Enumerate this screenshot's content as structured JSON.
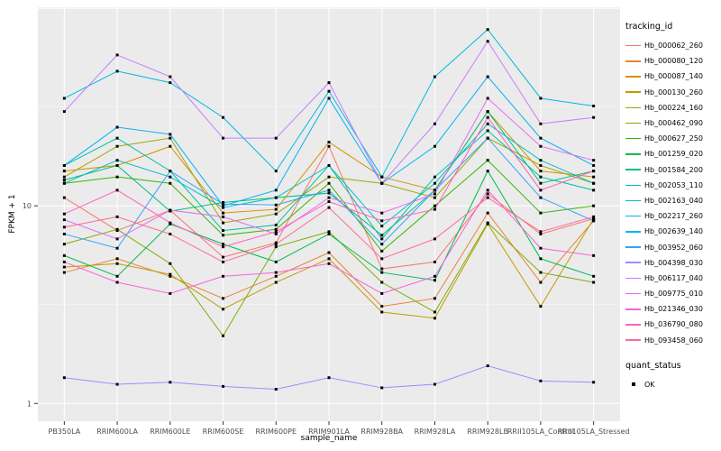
{
  "chart_data": {
    "type": "line",
    "title": "",
    "xlabel": "sample_name",
    "ylabel": "FPKM + 1",
    "y_scale": "log10",
    "ylim": [
      1,
      100
    ],
    "grid": true,
    "legend_position": "right",
    "point_color": "#000000",
    "yticks": [
      {
        "label": "1",
        "value": 1
      },
      {
        "label": "10",
        "value": 10
      }
    ],
    "categories": [
      "PB350LA",
      "RRIM600LA",
      "RRIM600LE",
      "RRIM600SE",
      "RRIM600PE",
      "RRIM901LA",
      "RRIM928BA",
      "RRIM928LA",
      "RRIM928LB",
      "RRII105LA_Control",
      "RRII105LA_Stressed"
    ],
    "series": [
      {
        "name": "Hb_000062_260",
        "color": "#F8766D",
        "values": [
          11,
          7.5,
          9.5,
          5.5,
          6.5,
          20,
          4.8,
          5.2,
          11.5,
          7.2,
          8.6
        ]
      },
      {
        "name": "Hb_000080_120",
        "color": "#EA8331",
        "values": [
          4.6,
          5.4,
          4.4,
          3.4,
          4.4,
          5.8,
          3.1,
          3.4,
          9.2,
          4.1,
          8.4
        ]
      },
      {
        "name": "Hb_000087_140",
        "color": "#D89000",
        "values": [
          15,
          16,
          20,
          9.2,
          9.6,
          21,
          14,
          12,
          30,
          15,
          14
        ]
      },
      {
        "name": "Hb_000130_260",
        "color": "#C09B00",
        "values": [
          4.9,
          5.1,
          4.5,
          3.0,
          4.1,
          5.4,
          2.9,
          2.7,
          8.1,
          3.1,
          8.6
        ]
      },
      {
        "name": "Hb_000224_160",
        "color": "#A3A500",
        "values": [
          14,
          20,
          22,
          8.2,
          9.1,
          14,
          13,
          11,
          22,
          16,
          13
        ]
      },
      {
        "name": "Hb_000462_090",
        "color": "#7CAE00",
        "values": [
          6.4,
          7.6,
          5.1,
          2.2,
          6.2,
          7.4,
          4.1,
          2.9,
          8.2,
          4.6,
          4.1
        ]
      },
      {
        "name": "Hb_000627_250",
        "color": "#39B600",
        "values": [
          13,
          14,
          13,
          7.1,
          7.6,
          13,
          5.9,
          10,
          17,
          9.2,
          10
        ]
      },
      {
        "name": "Hb_001259_020",
        "color": "#00BB4E",
        "values": [
          5.6,
          4.4,
          8.1,
          6.4,
          5.2,
          7.2,
          4.6,
          4.2,
          15,
          5.4,
          4.4
        ]
      },
      {
        "name": "Hb_001584_200",
        "color": "#00BF7D",
        "values": [
          13.5,
          16,
          9.4,
          10.4,
          11,
          11.6,
          7.1,
          12,
          30,
          13,
          15
        ]
      },
      {
        "name": "Hb_002053_110",
        "color": "#00C1A3",
        "values": [
          16,
          22,
          15,
          7.5,
          8,
          16,
          6.8,
          14,
          24,
          14,
          12
        ]
      },
      {
        "name": "Hb_002163_040",
        "color": "#00BFC4",
        "values": [
          13,
          17,
          14,
          9.8,
          11,
          16,
          7.9,
          13,
          26,
          17,
          13
        ]
      },
      {
        "name": "Hb_002217_260",
        "color": "#00BAE0",
        "values": [
          35,
          48,
          42,
          28,
          15,
          38,
          14,
          45,
          78,
          35,
          32
        ]
      },
      {
        "name": "Hb_002639_140",
        "color": "#00B0F6",
        "values": [
          16,
          25,
          23,
          10,
          12,
          35,
          13,
          20,
          45,
          22,
          16
        ]
      },
      {
        "name": "Hb_003952_060",
        "color": "#35A2FF",
        "values": [
          7.2,
          6.1,
          15,
          10.2,
          10.1,
          12,
          6.4,
          12,
          22,
          11,
          8.4
        ]
      },
      {
        "name": "Hb_004398_030",
        "color": "#9590FF",
        "values": [
          1.35,
          1.25,
          1.28,
          1.22,
          1.18,
          1.35,
          1.2,
          1.25,
          1.55,
          1.3,
          1.28
        ]
      },
      {
        "name": "Hb_006117_040",
        "color": "#C77CFF",
        "values": [
          30,
          58,
          45,
          22,
          22,
          42,
          13,
          26,
          68,
          26,
          28
        ]
      },
      {
        "name": "Hb_009775_010",
        "color": "#E76BF3",
        "values": [
          8.5,
          6.8,
          9.5,
          8.8,
          7.2,
          11,
          9.2,
          11.5,
          35,
          20,
          17
        ]
      },
      {
        "name": "Hb_021346_030",
        "color": "#FA62DB",
        "values": [
          5.2,
          4.1,
          3.6,
          4.4,
          4.6,
          5.1,
          3.6,
          4.4,
          12,
          6.1,
          5.6
        ]
      },
      {
        "name": "Hb_036790_080",
        "color": "#FF62BC",
        "values": [
          9.1,
          12,
          8.2,
          6.2,
          7.4,
          10.5,
          8.4,
          9.6,
          28,
          12,
          15
        ]
      },
      {
        "name": "Hb_093458_060",
        "color": "#FF6A98",
        "values": [
          7.8,
          8.8,
          7.2,
          5.2,
          6.4,
          9.8,
          5.4,
          6.8,
          11,
          7.4,
          8.8
        ]
      }
    ]
  },
  "legend": {
    "tracking_title": "tracking_id",
    "quant_title": "quant_status",
    "quant_items": [
      {
        "label": "OK"
      }
    ]
  },
  "colors": {
    "background": "#FFFFFF",
    "panel_bg": "#EBEBEB",
    "grid_major": "#FFFFFF",
    "grid_minor": "#F5F5F5",
    "axis_text": "#4D4D4D",
    "tick_mark": "#333333",
    "text": "#000000"
  }
}
